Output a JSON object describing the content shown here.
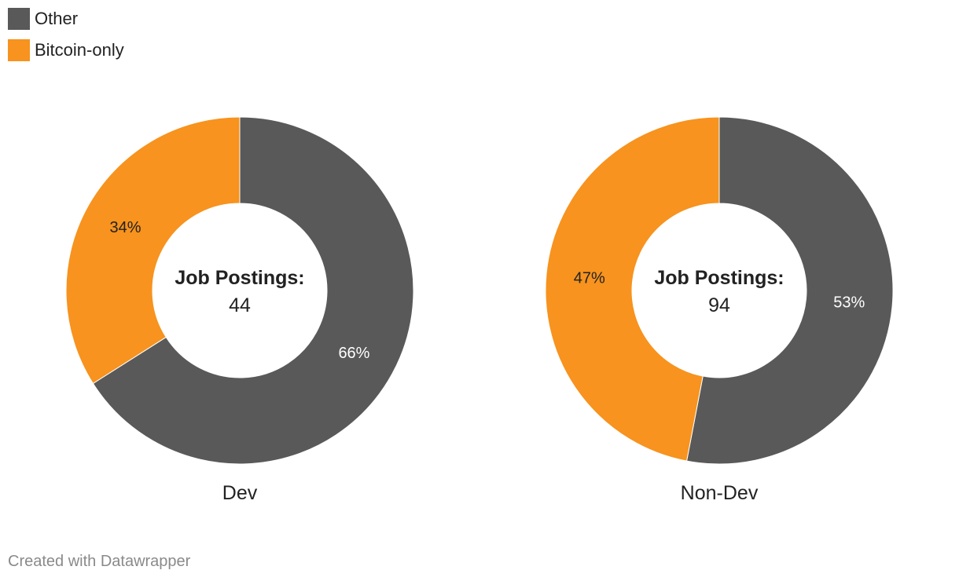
{
  "legend": [
    {
      "label": "Other",
      "color": "#595959"
    },
    {
      "label": "Bitcoin-only",
      "color": "#f7931e"
    }
  ],
  "center_label": "Job Postings:",
  "footer": "Created with Datawrapper",
  "chart_data": [
    {
      "type": "pie",
      "variant": "donut",
      "title": "Dev",
      "total": 44,
      "slices": [
        {
          "name": "Other",
          "value": 66,
          "label": "66%",
          "color": "#595959"
        },
        {
          "name": "Bitcoin-only",
          "value": 34,
          "label": "34%",
          "color": "#f7931e"
        }
      ]
    },
    {
      "type": "pie",
      "variant": "donut",
      "title": "Non-Dev",
      "total": 94,
      "slices": [
        {
          "name": "Other",
          "value": 53,
          "label": "53%",
          "color": "#595959"
        },
        {
          "name": "Bitcoin-only",
          "value": 47,
          "label": "47%",
          "color": "#f7931e"
        }
      ]
    }
  ]
}
